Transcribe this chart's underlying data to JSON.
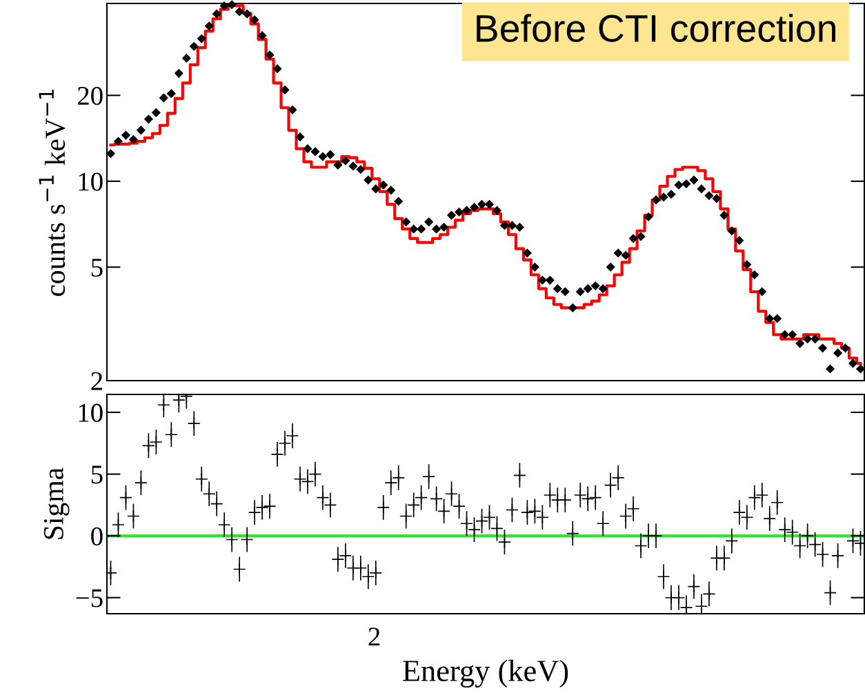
{
  "chart_data": [
    {
      "type": "scatter",
      "ylabel": "counts s$^{−1}$ keV$^{−1}$",
      "log": "y",
      "ylim": [
        2,
        42
      ],
      "yticks": [
        2,
        5,
        10,
        20
      ],
      "tick_labels": "y",
      "grid": false,
      "annotations": [
        "Before CTI correction"
      ],
      "categories": [
        null,
        null,
        null,
        null,
        null,
        null,
        null,
        null,
        null,
        null,
        null,
        null,
        null,
        null,
        null,
        null,
        null,
        null,
        null,
        null,
        null,
        null,
        null,
        null,
        null,
        null,
        null,
        null,
        null,
        null,
        null,
        null,
        null,
        null,
        null,
        null,
        null,
        null,
        null,
        null,
        null,
        null,
        null,
        null,
        null,
        null,
        null,
        null,
        null,
        null,
        null,
        null,
        null,
        null,
        null,
        null,
        null,
        null,
        null,
        null,
        null,
        null,
        null,
        null,
        null,
        null,
        null,
        null,
        null,
        null,
        null,
        null,
        null,
        null,
        null,
        null,
        null,
        null,
        null,
        null,
        null,
        null,
        null,
        null,
        null,
        null,
        null,
        null,
        null,
        null,
        null,
        null,
        null,
        null,
        null,
        null,
        null,
        null,
        null,
        null
      ],
      "series": [
        {
          "type": "step",
          "color": "#ff0000",
          "line_style": "solid",
          "values": [
            13.4,
            13.5,
            13.5,
            13.6,
            13.8,
            14.2,
            14.7,
            15.7,
            17.3,
            19.5,
            22.1,
            25.6,
            29.4,
            33.6,
            37.1,
            40.1,
            41.3,
            41.2,
            38.8,
            35.6,
            31.4,
            26.8,
            22.1,
            18.1,
            15.1,
            13.0,
            11.7,
            11.2,
            11.2,
            11.7,
            11.7,
            12.2,
            12.1,
            11.7,
            11.1,
            10.2,
            9.2,
            8.3,
            7.4,
            6.8,
            6.3,
            6.1,
            6.1,
            6.3,
            6.5,
            6.9,
            7.3,
            7.7,
            7.9,
            8.0,
            8.0,
            7.7,
            7.2,
            6.5,
            5.8,
            5.3,
            4.7,
            4.2,
            3.9,
            3.7,
            3.6,
            3.6,
            3.6,
            3.7,
            3.8,
            4.0,
            4.3,
            4.7,
            5.2,
            5.8,
            6.7,
            7.6,
            8.6,
            9.6,
            10.4,
            11.0,
            11.2,
            11.2,
            10.9,
            10.2,
            9.2,
            8.0,
            6.8,
            5.7,
            4.9,
            4.1,
            3.5,
            3.2,
            2.9,
            2.8,
            2.8,
            2.8,
            2.9,
            2.9,
            2.8,
            2.8,
            2.7,
            2.6,
            2.4,
            2.3
          ]
        },
        {
          "type": "scatter",
          "color": "#000000",
          "marker": "diamond",
          "values": [
            12.5,
            13.8,
            14.5,
            14.0,
            15.1,
            16.5,
            17.4,
            19.6,
            20.3,
            23.9,
            27.0,
            29.7,
            31.6,
            35.0,
            38.6,
            41.2,
            41.6,
            39.3,
            38.6,
            36.8,
            32.4,
            27.7,
            24.8,
            20.9,
            17.8,
            14.3,
            13.0,
            12.7,
            12.2,
            12.4,
            11.4,
            11.8,
            11.3,
            11.0,
            10.1,
            9.4,
            9.7,
            9.3,
            8.5,
            7.2,
            6.8,
            6.8,
            7.2,
            6.8,
            6.9,
            7.6,
            7.8,
            7.9,
            8.1,
            8.3,
            8.3,
            7.9,
            7.0,
            7.0,
            6.9,
            5.6,
            5.0,
            4.5,
            4.5,
            4.2,
            4.1,
            3.6,
            4.1,
            4.2,
            4.3,
            4.2,
            5.0,
            5.6,
            5.5,
            6.3,
            6.4,
            7.5,
            8.6,
            8.8,
            9.0,
            9.7,
            9.8,
            10.1,
            9.4,
            8.9,
            8.7,
            7.6,
            6.7,
            6.2,
            5.1,
            4.7,
            4.1,
            3.3,
            3.3,
            2.9,
            2.9,
            2.7,
            2.8,
            2.8,
            2.6,
            2.2,
            2.5,
            2.6,
            2.3,
            2.2
          ]
        }
      ]
    },
    {
      "type": "scatter",
      "xlabel": "Energy (keV)",
      "ylabel": "Sigma",
      "ylim": [
        -6.3,
        11.45
      ],
      "yticks": [
        -5,
        0,
        5,
        10
      ],
      "grid": false,
      "annotations": [
        "2"
      ],
      "ref_lines": [
        {
          "axis": "y",
          "value": 0,
          "color": "#22ee22"
        }
      ],
      "categories": [
        null,
        null,
        null,
        null,
        null,
        null,
        null,
        null,
        null,
        null,
        null,
        null,
        null,
        null,
        null,
        null,
        null,
        null,
        null,
        null,
        null,
        null,
        null,
        null,
        null,
        null,
        null,
        null,
        null,
        null,
        null,
        null,
        null,
        null,
        null,
        null,
        null,
        null,
        null,
        null,
        null,
        null,
        null,
        null,
        null,
        null,
        null,
        null,
        null,
        null,
        null,
        null,
        null,
        null,
        null,
        null,
        null,
        null,
        null,
        null,
        null,
        null,
        null,
        null,
        null,
        null,
        null,
        null,
        null,
        null,
        null,
        null,
        null,
        null,
        null,
        null,
        null,
        null,
        null,
        null,
        null,
        null,
        null,
        null,
        null,
        null,
        null,
        null,
        null,
        null,
        null,
        null,
        null,
        null,
        null,
        null,
        null,
        null,
        null,
        null
      ],
      "series": [
        {
          "type": "scatter",
          "color": "#000000",
          "marker": "cross",
          "values": [
            -3.0,
            0.9,
            3.1,
            1.6,
            4.3,
            7.3,
            7.6,
            10.6,
            8.2,
            11.0,
            11.3,
            9.1,
            4.6,
            3.4,
            2.6,
            0.9,
            -0.3,
            -2.7,
            -0.3,
            1.9,
            2.3,
            2.4,
            6.6,
            7.5,
            8.1,
            4.6,
            4.4,
            5.0,
            3.1,
            2.5,
            -1.9,
            -1.6,
            -2.6,
            -2.6,
            -3.3,
            -3.0,
            2.3,
            4.3,
            4.7,
            1.6,
            2.5,
            3.1,
            4.8,
            3.0,
            2.0,
            3.4,
            2.4,
            1.0,
            0.5,
            1.2,
            1.5,
            0.6,
            -0.5,
            2.1,
            4.9,
            1.9,
            2.0,
            1.5,
            3.3,
            2.9,
            2.9,
            0.2,
            3.3,
            3.0,
            3.1,
            1.0,
            4.1,
            4.7,
            1.6,
            2.2,
            -0.8,
            0.0,
            0.0,
            -3.3,
            -5.0,
            -5.0,
            -5.8,
            -4.1,
            -5.7,
            -4.7,
            -1.8,
            -1.8,
            -0.4,
            1.9,
            1.5,
            3.1,
            3.3,
            1.4,
            2.7,
            0.5,
            0.3,
            -0.8,
            0.0,
            -0.7,
            -1.5,
            -4.6,
            -1.6,
            null,
            -0.4,
            -0.6
          ],
          "errors": [
            1,
            1,
            1,
            1,
            1,
            1,
            1,
            1,
            1,
            1,
            1,
            1,
            1,
            1,
            1,
            1,
            1,
            1,
            1,
            1,
            1,
            1,
            1,
            1,
            1,
            1,
            1,
            1,
            1,
            1,
            1,
            1,
            1,
            1,
            1,
            1,
            1,
            1,
            1,
            1,
            1,
            1,
            1,
            1,
            1,
            1,
            1,
            1,
            1,
            1,
            1,
            1,
            1,
            1,
            1,
            1,
            1,
            1,
            1,
            1,
            1,
            1,
            1,
            1,
            1,
            1,
            1,
            1,
            1,
            1,
            1,
            1,
            1,
            1,
            1,
            1,
            1,
            1,
            1,
            1,
            1,
            1,
            1,
            1,
            1,
            1,
            1,
            1,
            1,
            1,
            1,
            1,
            1,
            1,
            1,
            1,
            1,
            null,
            1,
            1
          ]
        }
      ]
    }
  ]
}
